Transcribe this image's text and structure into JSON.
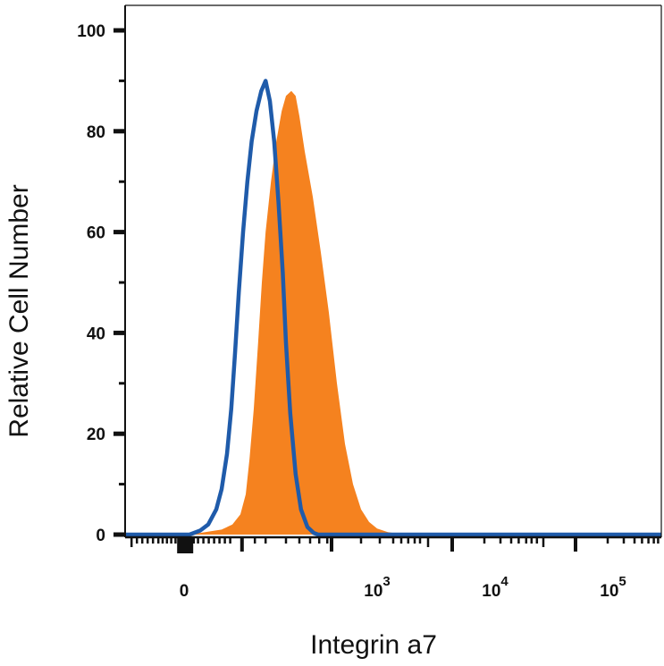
{
  "chart_data": {
    "type": "area",
    "title": "",
    "xlabel": "Integrin a7",
    "ylabel": "Relative Cell Number",
    "x_scale": "biexponential",
    "x_tick_labels": [
      {
        "base": "0",
        "exp": ""
      },
      {
        "base": "10",
        "exp": "3"
      },
      {
        "base": "10",
        "exp": "4"
      },
      {
        "base": "10",
        "exp": "5"
      }
    ],
    "y_ticks": [
      0,
      20,
      40,
      60,
      80,
      100
    ],
    "ylim": [
      0,
      105
    ],
    "grid": false,
    "legend": "none",
    "series": [
      {
        "style": "filled",
        "color": "#F5821F",
        "points": [
          [
            0.05,
            0
          ],
          [
            0.12,
            0
          ],
          [
            0.18,
            1
          ],
          [
            0.2,
            2
          ],
          [
            0.215,
            4
          ],
          [
            0.225,
            8
          ],
          [
            0.232,
            15
          ],
          [
            0.24,
            25
          ],
          [
            0.248,
            38
          ],
          [
            0.255,
            50
          ],
          [
            0.262,
            60
          ],
          [
            0.272,
            70
          ],
          [
            0.282,
            78
          ],
          [
            0.292,
            84
          ],
          [
            0.3,
            87
          ],
          [
            0.31,
            88
          ],
          [
            0.318,
            87
          ],
          [
            0.325,
            83
          ],
          [
            0.335,
            76
          ],
          [
            0.35,
            67
          ],
          [
            0.365,
            56
          ],
          [
            0.38,
            44
          ],
          [
            0.395,
            30
          ],
          [
            0.41,
            18
          ],
          [
            0.425,
            10
          ],
          [
            0.44,
            5
          ],
          [
            0.455,
            2.5
          ],
          [
            0.47,
            1.2
          ],
          [
            0.49,
            0.5
          ],
          [
            0.52,
            0
          ],
          [
            1.0,
            0
          ]
        ]
      },
      {
        "style": "outline",
        "color": "#1F5BAA",
        "points": [
          [
            0.0,
            0
          ],
          [
            0.12,
            0
          ],
          [
            0.14,
            0.8
          ],
          [
            0.155,
            2
          ],
          [
            0.17,
            5
          ],
          [
            0.18,
            9
          ],
          [
            0.19,
            16
          ],
          [
            0.198,
            25
          ],
          [
            0.205,
            36
          ],
          [
            0.212,
            48
          ],
          [
            0.22,
            60
          ],
          [
            0.228,
            70
          ],
          [
            0.236,
            78
          ],
          [
            0.245,
            84
          ],
          [
            0.254,
            88
          ],
          [
            0.262,
            90
          ],
          [
            0.27,
            86
          ],
          [
            0.278,
            78
          ],
          [
            0.286,
            66
          ],
          [
            0.294,
            52
          ],
          [
            0.3,
            38
          ],
          [
            0.308,
            24
          ],
          [
            0.318,
            12
          ],
          [
            0.328,
            5
          ],
          [
            0.34,
            1.5
          ],
          [
            0.352,
            0.3
          ],
          [
            0.36,
            0
          ],
          [
            1.0,
            0
          ]
        ]
      }
    ]
  }
}
